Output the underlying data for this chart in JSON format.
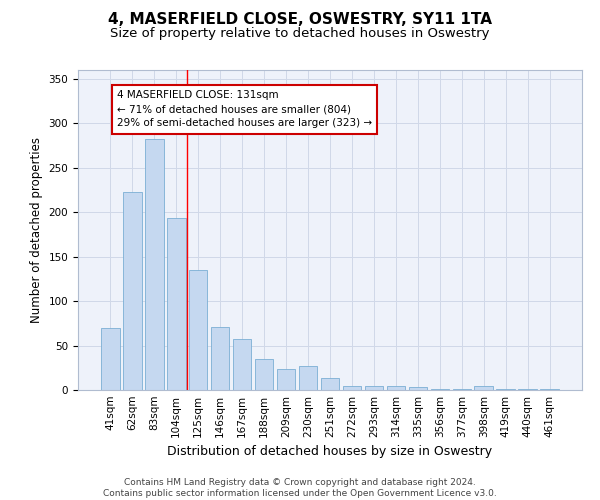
{
  "title": "4, MASERFIELD CLOSE, OSWESTRY, SY11 1TA",
  "subtitle": "Size of property relative to detached houses in Oswestry",
  "xlabel": "Distribution of detached houses by size in Oswestry",
  "ylabel": "Number of detached properties",
  "categories": [
    "41sqm",
    "62sqm",
    "83sqm",
    "104sqm",
    "125sqm",
    "146sqm",
    "167sqm",
    "188sqm",
    "209sqm",
    "230sqm",
    "251sqm",
    "272sqm",
    "293sqm",
    "314sqm",
    "335sqm",
    "356sqm",
    "377sqm",
    "398sqm",
    "419sqm",
    "440sqm",
    "461sqm"
  ],
  "values": [
    70,
    223,
    282,
    194,
    135,
    71,
    57,
    35,
    24,
    27,
    14,
    4,
    5,
    5,
    3,
    1,
    1,
    5,
    1,
    1,
    1
  ],
  "bar_color": "#c5d8f0",
  "bar_edge_color": "#7bafd4",
  "annotation_text_lines": [
    "4 MASERFIELD CLOSE: 131sqm",
    "← 71% of detached houses are smaller (804)",
    "29% of semi-detached houses are larger (323) →"
  ],
  "annotation_box_color": "#ffffff",
  "annotation_box_edge_color": "#cc0000",
  "red_line_x": 3.5,
  "ylim": [
    0,
    360
  ],
  "yticks": [
    0,
    50,
    100,
    150,
    200,
    250,
    300,
    350
  ],
  "grid_color": "#d0d8e8",
  "background_color": "#eef2fa",
  "footer_text": "Contains HM Land Registry data © Crown copyright and database right 2024.\nContains public sector information licensed under the Open Government Licence v3.0.",
  "title_fontsize": 11,
  "subtitle_fontsize": 9.5,
  "xlabel_fontsize": 9,
  "ylabel_fontsize": 8.5,
  "tick_fontsize": 7.5,
  "footer_fontsize": 6.5
}
